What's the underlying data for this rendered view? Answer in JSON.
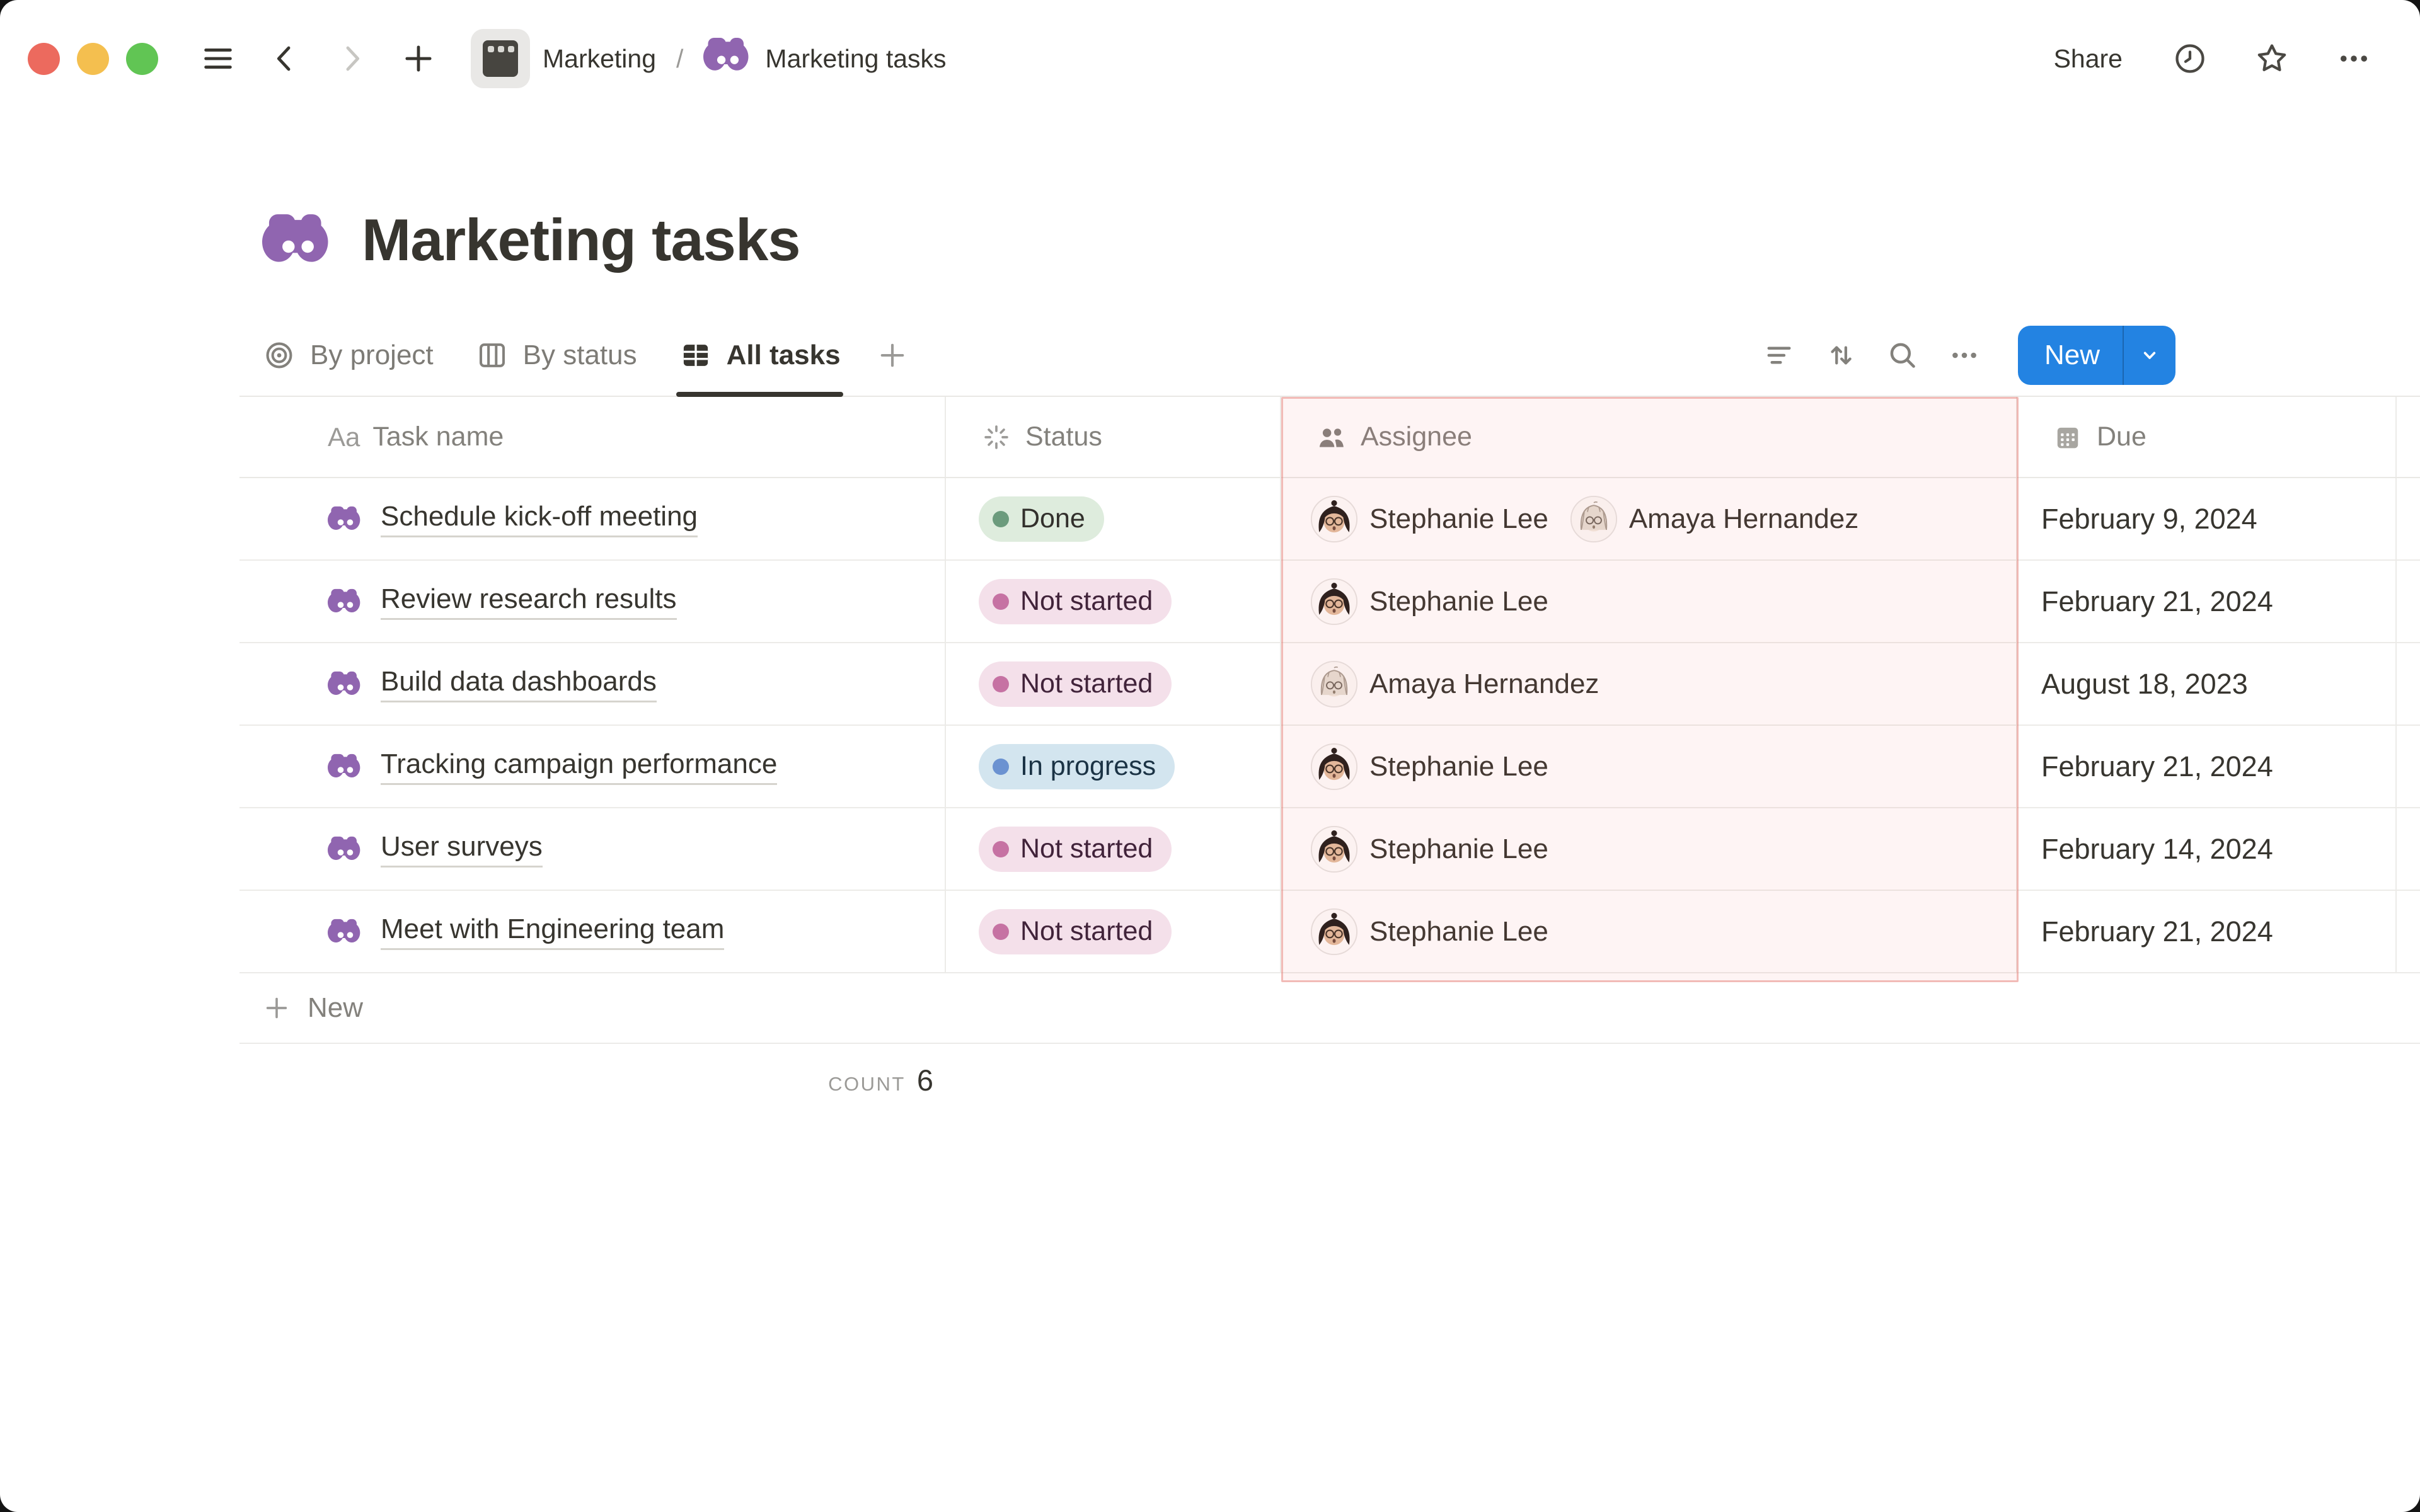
{
  "window": {
    "controls": [
      "close",
      "minimize",
      "zoom"
    ]
  },
  "toolbar": {
    "breadcrumb": {
      "parent": "Marketing",
      "parent_icon": "app-window-icon",
      "separator": "/",
      "current": "Marketing tasks",
      "current_icon": "binoculars-icon"
    },
    "share_label": "Share"
  },
  "page": {
    "icon": "binoculars-icon",
    "title": "Marketing tasks"
  },
  "views": {
    "tabs": [
      {
        "label": "By project",
        "icon": "target-icon",
        "active": false
      },
      {
        "label": "By status",
        "icon": "board-icon",
        "active": false
      },
      {
        "label": "All tasks",
        "icon": "table-icon",
        "active": true
      }
    ],
    "add_view": "+"
  },
  "actions": {
    "filter": "filter-icon",
    "sort": "sort-icon",
    "search": "search-icon",
    "more": "ellipsis-icon",
    "new_label": "New"
  },
  "table": {
    "columns": [
      {
        "label": "Task name",
        "icon": "text-icon"
      },
      {
        "label": "Status",
        "icon": "status-burst-icon"
      },
      {
        "label": "Assignee",
        "icon": "people-icon",
        "highlighted": true
      },
      {
        "label": "Due",
        "icon": "calendar-icon"
      }
    ],
    "rows": [
      {
        "task": "Schedule kick-off meeting",
        "status": {
          "label": "Done",
          "type": "green"
        },
        "assignees": [
          {
            "name": "Stephanie Lee",
            "avatar": "stephanie"
          },
          {
            "name": "Amaya Hernandez",
            "avatar": "amaya"
          }
        ],
        "due": "February 9, 2024"
      },
      {
        "task": "Review research results",
        "status": {
          "label": "Not started",
          "type": "pink"
        },
        "assignees": [
          {
            "name": "Stephanie Lee",
            "avatar": "stephanie"
          }
        ],
        "due": "February 21, 2024"
      },
      {
        "task": "Build data dashboards",
        "status": {
          "label": "Not started",
          "type": "pink"
        },
        "assignees": [
          {
            "name": "Amaya Hernandez",
            "avatar": "amaya"
          }
        ],
        "due": "August 18, 2023"
      },
      {
        "task": "Tracking campaign performance",
        "status": {
          "label": "In progress",
          "type": "blue"
        },
        "assignees": [
          {
            "name": "Stephanie Lee",
            "avatar": "stephanie"
          }
        ],
        "due": "February 21, 2024"
      },
      {
        "task": "User surveys",
        "status": {
          "label": "Not started",
          "type": "pink"
        },
        "assignees": [
          {
            "name": "Stephanie Lee",
            "avatar": "stephanie"
          }
        ],
        "due": "February 14, 2024"
      },
      {
        "task": "Meet with Engineering team",
        "status": {
          "label": "Not started",
          "type": "pink"
        },
        "assignees": [
          {
            "name": "Stephanie Lee",
            "avatar": "stephanie"
          }
        ],
        "due": "February 21, 2024"
      }
    ],
    "footer": {
      "new_label": "New",
      "count_label": "COUNT",
      "count_value": "6"
    }
  },
  "colors": {
    "accent_blue": "#2383E2",
    "icon_purple": "#9065B0",
    "traffic": {
      "red": "#EC6A5E",
      "yellow": "#F4BF4F",
      "green": "#61C554"
    },
    "assignee_highlight": {
      "bg": "rgba(235,106,96,0.07)",
      "border": "rgba(227,118,109,0.45)"
    },
    "status_styles": {
      "green": {
        "bg": "#DEECDD",
        "dot": "#6C9B7D",
        "text": "#32302C"
      },
      "pink": {
        "bg": "#F4E0EA",
        "dot": "#C672A3",
        "text": "#41233A"
      },
      "blue": {
        "bg": "#D3E5EF",
        "dot": "#6B92D1",
        "text": "#1B3345"
      }
    }
  }
}
